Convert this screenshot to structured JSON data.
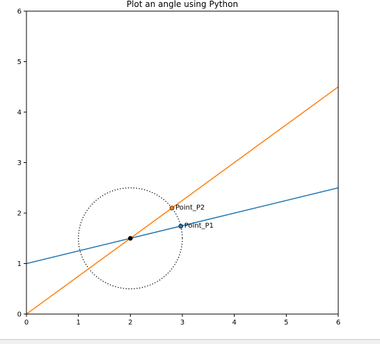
{
  "chart_data": {
    "type": "line",
    "title": "Plot an angle using Python",
    "xlabel": "",
    "ylabel": "",
    "xlim": [
      0,
      6
    ],
    "ylim": [
      0,
      6
    ],
    "x_ticks": [
      0,
      1,
      2,
      3,
      4,
      5,
      6
    ],
    "y_ticks": [
      0,
      1,
      2,
      3,
      4,
      5,
      6
    ],
    "grid": false,
    "series": [
      {
        "color": "#1f77b4",
        "points": [
          [
            0,
            1.0
          ],
          [
            6,
            2.5
          ]
        ]
      },
      {
        "color": "#ff7f0e",
        "points": [
          [
            0,
            0.0
          ],
          [
            6,
            4.5
          ]
        ]
      }
    ],
    "circle": {
      "center": [
        2,
        1.5
      ],
      "radius": 1.0,
      "style": "dotted",
      "color": "#000000"
    },
    "markers": [
      {
        "x": 2.0,
        "y": 1.5,
        "color": "#000000",
        "label": ""
      },
      {
        "x": 2.97,
        "y": 1.74,
        "color": "#1f77b4",
        "label": "Point_P1"
      },
      {
        "x": 2.8,
        "y": 2.1,
        "color": "#ff7f0e",
        "label": "Point_P2"
      }
    ]
  }
}
